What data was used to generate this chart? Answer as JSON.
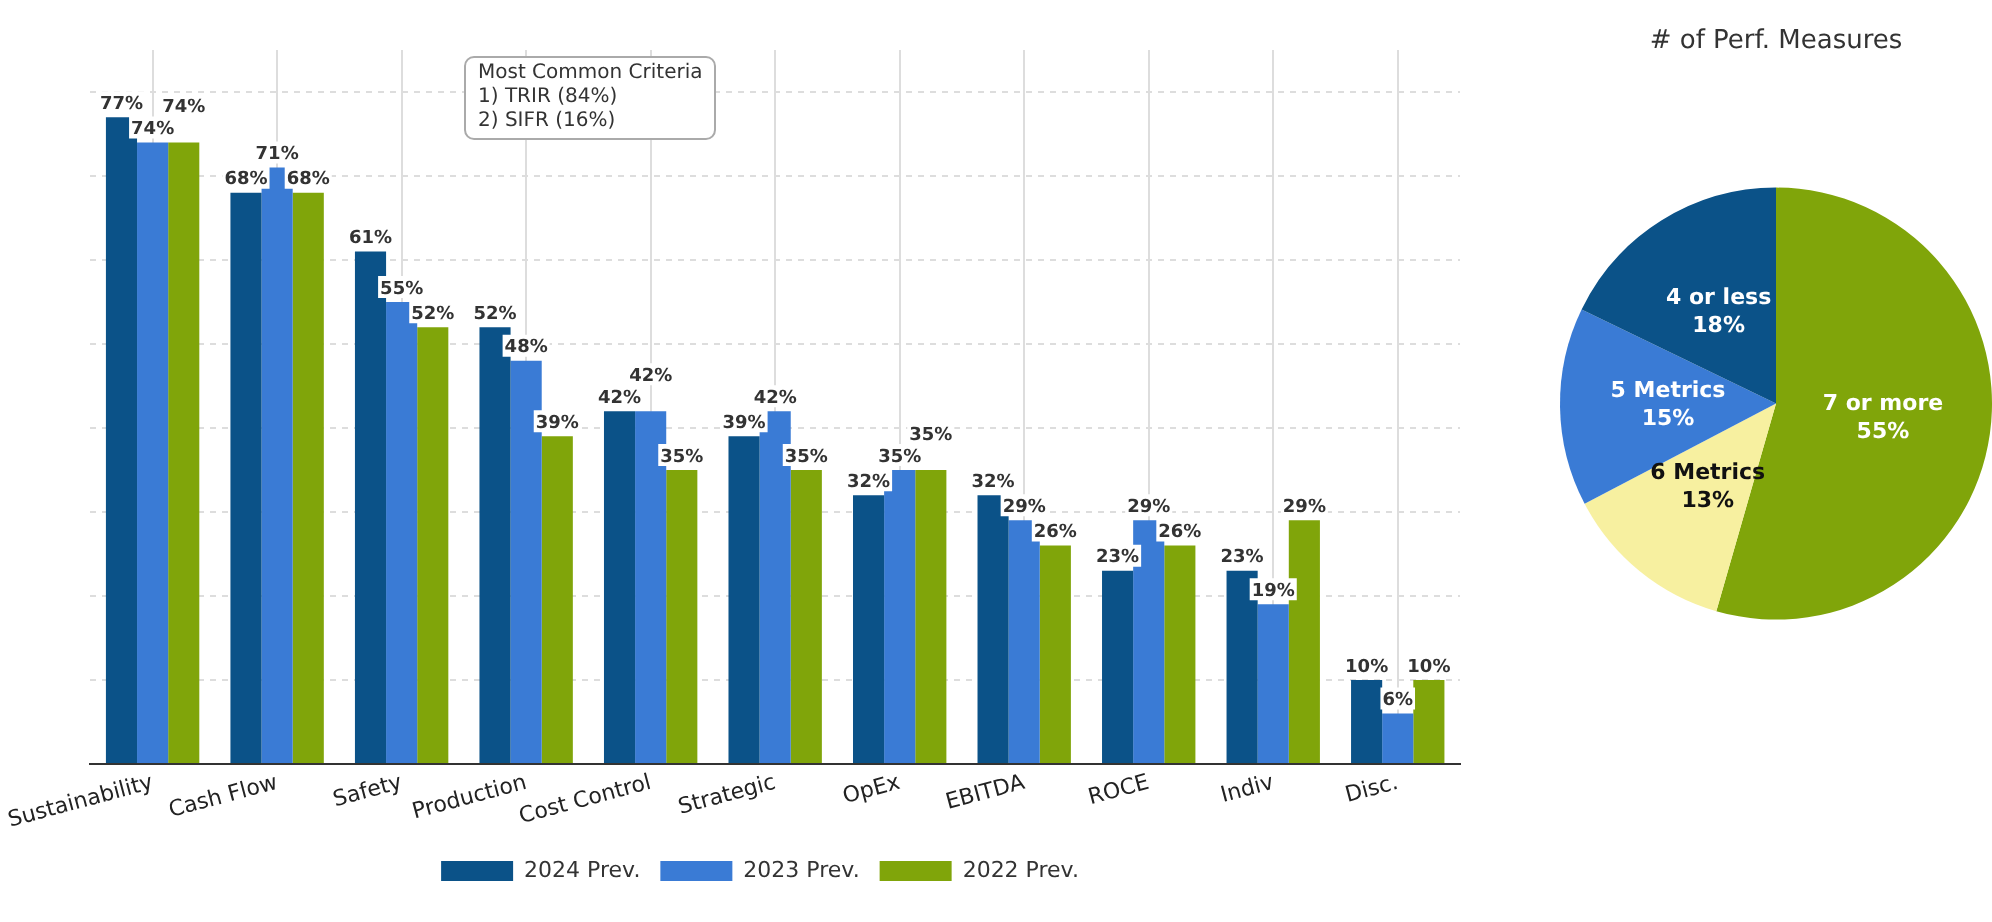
{
  "chart_data": [
    {
      "type": "bar",
      "categories": [
        "Sustainability",
        "Cash Flow",
        "Safety",
        "Production",
        "Cost Control",
        "Strategic",
        "OpEx",
        "EBITDA",
        "ROCE",
        "Indiv",
        "Disc."
      ],
      "series": [
        {
          "name": "2024 Prev.",
          "color": "#0b5288",
          "values": [
            77,
            68,
            61,
            52,
            42,
            39,
            32,
            32,
            23,
            23,
            10
          ],
          "value_labels": [
            "77%",
            "68%",
            "61%",
            "52%",
            "42%",
            "39%",
            "32%",
            "32%",
            "23%",
            "23%",
            "10%"
          ]
        },
        {
          "name": "2023 Prev.",
          "color": "#3a7bd5",
          "values": [
            74,
            71,
            55,
            48,
            42,
            42,
            35,
            29,
            29,
            19,
            6
          ],
          "value_labels": [
            "74%",
            "71%",
            "55%",
            "48%",
            "42%",
            "42%",
            "35%",
            "29%",
            "29%",
            "19%",
            "6%"
          ]
        },
        {
          "name": "2022 Prev.",
          "color": "#80a50a",
          "values": [
            74,
            68,
            52,
            39,
            35,
            35,
            35,
            26,
            26,
            29,
            10
          ],
          "value_labels": [
            "74%",
            "68%",
            "52%",
            "39%",
            "35%",
            "35%",
            "35%",
            "26%",
            "26%",
            "29%",
            "10%"
          ]
        }
      ],
      "ylim": [
        0,
        85
      ],
      "yticks": [
        {
          "value": 0,
          "label": null
        },
        {
          "value": 10,
          "label": null
        },
        {
          "value": 20,
          "label": null
        },
        {
          "value": 30,
          "label": null
        },
        {
          "value": 40,
          "label": null
        },
        {
          "value": 50,
          "label": null
        },
        {
          "value": 60,
          "label": null
        },
        {
          "value": 70,
          "label": null
        },
        {
          "value": 80,
          "label": null
        }
      ],
      "tick_labels": "x",
      "grid": true,
      "legend": "bottom",
      "annotations": [
        "Most Common Criteria\n1) TRIR (84%)\n2) SIFR (16%)"
      ]
    },
    {
      "type": "pie",
      "title": "# of Perf. Measures",
      "categories": [
        "7 or more",
        "6 Metrics",
        "5 Metrics",
        "4 or less"
      ],
      "values": [
        55,
        13,
        15,
        18
      ],
      "value_labels": [
        "55%",
        "13%",
        "15%",
        "18%"
      ],
      "colors": [
        "#80a50a",
        "#f7f0a0",
        "#3a7bd5",
        "#0b5288"
      ],
      "legend": false
    }
  ]
}
